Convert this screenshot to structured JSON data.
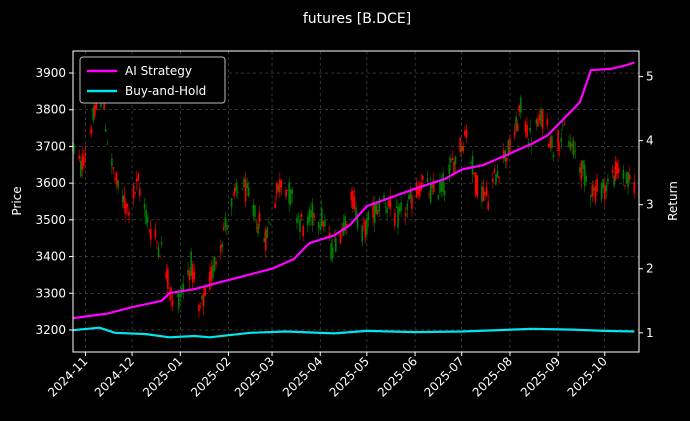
{
  "chart_data": {
    "type": "line",
    "title": "futures [B.DCE]",
    "ylabel_left": "Price",
    "ylabel_right": "Return",
    "ylim_left": [
      3140,
      3960
    ],
    "yticks_left": [
      3200,
      3300,
      3400,
      3500,
      3600,
      3700,
      3800,
      3900
    ],
    "ylim_right": [
      0.7,
      5.4
    ],
    "yticks_right": [
      1,
      2,
      3,
      4,
      5
    ],
    "xlim": [
      "2024-10-24",
      "2025-10-23"
    ],
    "xticks": [
      "2024-11-01",
      "2024-12-01",
      "2025-01-01",
      "2025-02-01",
      "2025-03-01",
      "2025-04-01",
      "2025-05-01",
      "2025-06-01",
      "2025-07-01",
      "2025-08-01",
      "2025-09-01",
      "2025-10-01"
    ],
    "xtick_labels": [
      "2024-11",
      "2024-12",
      "2025-01",
      "2025-02",
      "2025-03",
      "2025-04",
      "2025-05",
      "2025-06",
      "2025-07",
      "2025-08",
      "2025-09",
      "2025-10"
    ],
    "grid": true,
    "legend_position": "top-left",
    "colors": {
      "up": "#008000",
      "down": "#ff0000",
      "ai": "#ff00ff",
      "bh": "#00e5ee",
      "grid": "#555555"
    },
    "price_path": [
      {
        "date": "2024-10-24",
        "close": 3700
      },
      {
        "date": "2024-10-29",
        "close": 3640
      },
      {
        "date": "2024-11-05",
        "close": 3760
      },
      {
        "date": "2024-11-12",
        "close": 3850
      },
      {
        "date": "2024-11-16",
        "close": 3680
      },
      {
        "date": "2024-11-22",
        "close": 3580
      },
      {
        "date": "2024-11-28",
        "close": 3530
      },
      {
        "date": "2024-12-05",
        "close": 3600
      },
      {
        "date": "2024-12-12",
        "close": 3480
      },
      {
        "date": "2024-12-20",
        "close": 3420
      },
      {
        "date": "2024-12-28",
        "close": 3260
      },
      {
        "date": "2025-01-03",
        "close": 3320
      },
      {
        "date": "2025-01-08",
        "close": 3380
      },
      {
        "date": "2025-01-13",
        "close": 3240
      },
      {
        "date": "2025-01-20",
        "close": 3330
      },
      {
        "date": "2025-01-26",
        "close": 3430
      },
      {
        "date": "2025-02-03",
        "close": 3540
      },
      {
        "date": "2025-02-10",
        "close": 3600
      },
      {
        "date": "2025-02-17",
        "close": 3520
      },
      {
        "date": "2025-02-25",
        "close": 3450
      },
      {
        "date": "2025-03-03",
        "close": 3560
      },
      {
        "date": "2025-03-08",
        "close": 3620
      },
      {
        "date": "2025-03-15",
        "close": 3540
      },
      {
        "date": "2025-03-22",
        "close": 3470
      },
      {
        "date": "2025-03-28",
        "close": 3520
      },
      {
        "date": "2025-04-03",
        "close": 3500
      },
      {
        "date": "2025-04-08",
        "close": 3420
      },
      {
        "date": "2025-04-15",
        "close": 3480
      },
      {
        "date": "2025-04-22",
        "close": 3560
      },
      {
        "date": "2025-04-28",
        "close": 3460
      },
      {
        "date": "2025-05-05",
        "close": 3520
      },
      {
        "date": "2025-05-12",
        "close": 3560
      },
      {
        "date": "2025-05-20",
        "close": 3500
      },
      {
        "date": "2025-05-28",
        "close": 3540
      },
      {
        "date": "2025-06-05",
        "close": 3600
      },
      {
        "date": "2025-06-12",
        "close": 3570
      },
      {
        "date": "2025-06-20",
        "close": 3600
      },
      {
        "date": "2025-06-28",
        "close": 3680
      },
      {
        "date": "2025-07-04",
        "close": 3740
      },
      {
        "date": "2025-07-10",
        "close": 3600
      },
      {
        "date": "2025-07-18",
        "close": 3560
      },
      {
        "date": "2025-07-26",
        "close": 3660
      },
      {
        "date": "2025-08-02",
        "close": 3700
      },
      {
        "date": "2025-08-08",
        "close": 3800
      },
      {
        "date": "2025-08-14",
        "close": 3720
      },
      {
        "date": "2025-08-22",
        "close": 3780
      },
      {
        "date": "2025-08-29",
        "close": 3700
      },
      {
        "date": "2025-09-05",
        "close": 3740
      },
      {
        "date": "2025-09-12",
        "close": 3680
      },
      {
        "date": "2025-09-18",
        "close": 3620
      },
      {
        "date": "2025-09-24",
        "close": 3580
      },
      {
        "date": "2025-10-01",
        "close": 3590
      },
      {
        "date": "2025-10-10",
        "close": 3640
      },
      {
        "date": "2025-10-15",
        "close": 3600
      },
      {
        "date": "2025-10-20",
        "close": 3600
      }
    ],
    "series": [
      {
        "name": "AI Strategy",
        "points": [
          [
            "2024-10-24",
            1.23
          ],
          [
            "2024-11-15",
            1.3
          ],
          [
            "2024-12-01",
            1.4
          ],
          [
            "2024-12-20",
            1.5
          ],
          [
            "2024-12-25",
            1.62
          ],
          [
            "2025-01-10",
            1.68
          ],
          [
            "2025-01-25",
            1.78
          ],
          [
            "2025-02-10",
            1.88
          ],
          [
            "2025-03-01",
            2.0
          ],
          [
            "2025-03-15",
            2.15
          ],
          [
            "2025-03-25",
            2.4
          ],
          [
            "2025-04-10",
            2.52
          ],
          [
            "2025-04-20",
            2.68
          ],
          [
            "2025-05-01",
            2.98
          ],
          [
            "2025-05-15",
            3.1
          ],
          [
            "2025-06-01",
            3.25
          ],
          [
            "2025-06-20",
            3.4
          ],
          [
            "2025-07-01",
            3.55
          ],
          [
            "2025-07-15",
            3.62
          ],
          [
            "2025-08-01",
            3.8
          ],
          [
            "2025-08-15",
            3.95
          ],
          [
            "2025-08-25",
            4.08
          ],
          [
            "2025-09-05",
            4.35
          ],
          [
            "2025-09-15",
            4.6
          ],
          [
            "2025-09-20",
            4.95
          ],
          [
            "2025-09-22",
            5.1
          ],
          [
            "2025-10-05",
            5.12
          ],
          [
            "2025-10-15",
            5.18
          ],
          [
            "2025-10-20",
            5.22
          ]
        ]
      },
      {
        "name": "Buy-and-Hold",
        "points": [
          [
            "2024-10-24",
            1.04
          ],
          [
            "2024-11-10",
            1.08
          ],
          [
            "2024-11-20",
            1.0
          ],
          [
            "2024-12-10",
            0.98
          ],
          [
            "2024-12-25",
            0.93
          ],
          [
            "2025-01-10",
            0.95
          ],
          [
            "2025-01-20",
            0.93
          ],
          [
            "2025-02-15",
            1.0
          ],
          [
            "2025-03-10",
            1.02
          ],
          [
            "2025-04-10",
            0.99
          ],
          [
            "2025-05-01",
            1.03
          ],
          [
            "2025-06-01",
            1.01
          ],
          [
            "2025-07-01",
            1.02
          ],
          [
            "2025-08-15",
            1.06
          ],
          [
            "2025-09-10",
            1.05
          ],
          [
            "2025-10-01",
            1.03
          ],
          [
            "2025-10-20",
            1.02
          ]
        ]
      }
    ]
  }
}
